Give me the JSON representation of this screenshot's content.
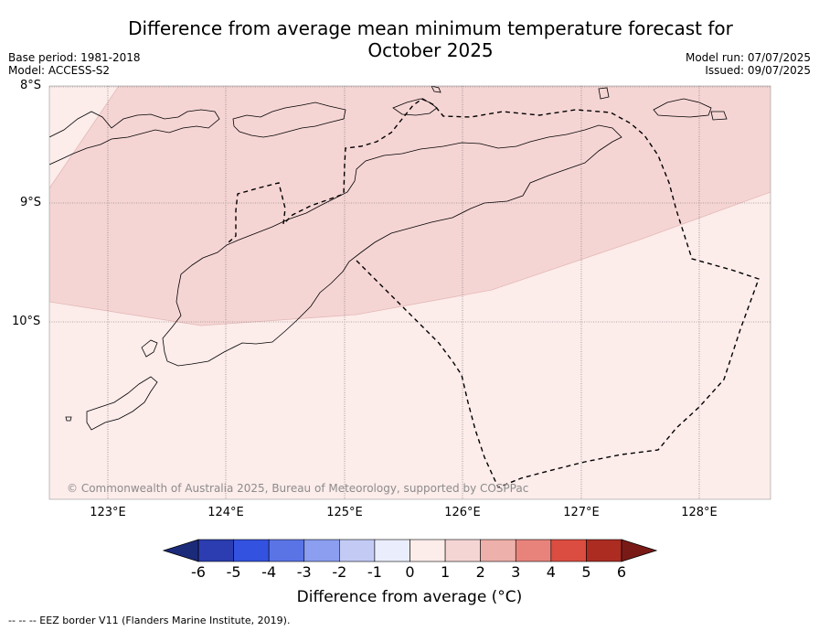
{
  "title_line1": "Difference from average mean minimum temperature forecast for",
  "title_line2": "October 2025",
  "base_period": "Base period: 1981-2018",
  "model": "Model: ACCESS-S2",
  "model_run": "Model run: 07/07/2025",
  "issued": "Issued: 09/07/2025",
  "lat_labels": [
    "8°S",
    "9°S",
    "10°S"
  ],
  "lon_labels": [
    "123°E",
    "124°E",
    "125°E",
    "126°E",
    "127°E",
    "128°E"
  ],
  "copyright": "© Commonwealth of Australia 2025, Bureau of Meteorology, supported by COSPPac",
  "colorbar": {
    "ticks": [
      "-6",
      "-5",
      "-4",
      "-3",
      "-2",
      "-1",
      "0",
      "1",
      "2",
      "3",
      "4",
      "5",
      "6"
    ],
    "colors": [
      "#1c2a7a",
      "#2b3db0",
      "#3352e0",
      "#5a74e6",
      "#8b9ef0",
      "#c3cbf5",
      "#eaedfb",
      "#fcecea",
      "#f5d5d4",
      "#eeb0aa",
      "#e8837b",
      "#db4d40",
      "#ac2c22",
      "#7a1a17"
    ],
    "label": "Difference from average (°C)"
  },
  "map_fills": {
    "zero_to_one": "#fcecea",
    "one_to_two": "#f5d5d4"
  },
  "footnote": "-- -- -- EEZ border V11 (Flanders Marine Institute, 2019)."
}
